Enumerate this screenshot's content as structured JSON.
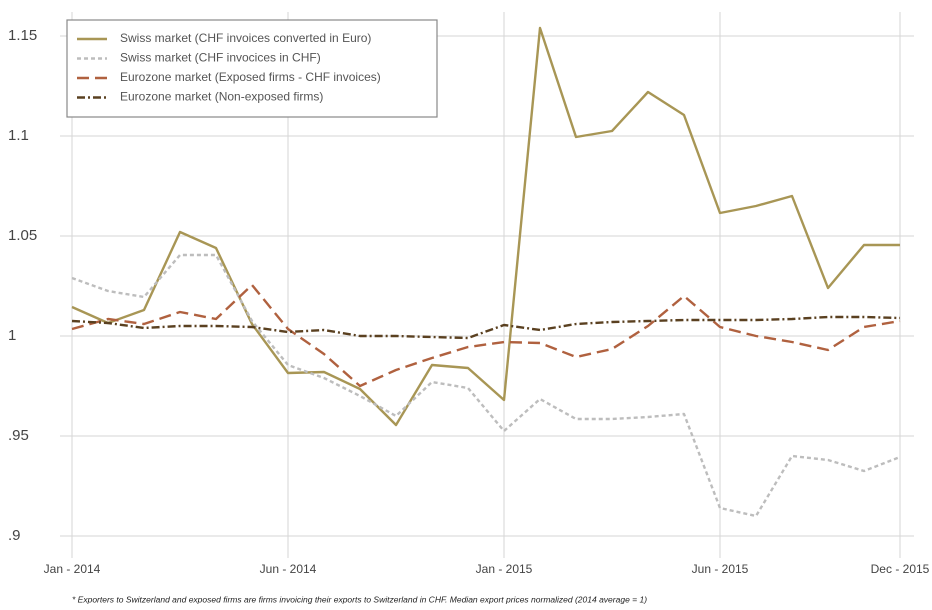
{
  "chart_data": {
    "type": "line",
    "categories": [
      "Jan - 2014",
      null,
      null,
      null,
      null,
      null,
      "Jun - 2014",
      null,
      null,
      null,
      null,
      null,
      "Jan - 2015",
      null,
      null,
      null,
      null,
      null,
      "Jun - 2015",
      null,
      null,
      null,
      null,
      "Dec - 2015"
    ],
    "series": [
      {
        "name": "Swiss market (CHF invoices converted in Euro)",
        "color": "#a89655",
        "dash": "solid",
        "values": [
          1.0145,
          1.0065,
          1.013,
          1.052,
          1.044,
          1.006,
          0.9815,
          0.982,
          0.9735,
          0.9555,
          0.9855,
          0.984,
          0.968,
          1.154,
          1.0995,
          1.1025,
          1.122,
          1.1105,
          1.0615,
          1.065,
          1.07,
          1.024,
          1.0455,
          1.0455
        ]
      },
      {
        "name": "Swiss market (CHF invocices in CHF)",
        "color": "#bdbdbd",
        "dash": "dotted",
        "values": [
          1.029,
          1.0225,
          1.0195,
          1.0405,
          1.0405,
          1.0075,
          0.9855,
          0.979,
          0.97,
          0.96,
          0.977,
          0.974,
          0.9525,
          0.9685,
          0.9585,
          0.9585,
          0.9595,
          0.961,
          0.914,
          0.91,
          0.94,
          0.938,
          0.9325,
          0.9395
        ]
      },
      {
        "name": "Eurozone market (Exposed firms - CHF invoices)",
        "color": "#b0613f",
        "dash": "dashed",
        "values": [
          1.0035,
          1.0085,
          1.006,
          1.012,
          1.0085,
          1.0255,
          1.0035,
          0.991,
          0.975,
          0.983,
          0.989,
          0.9945,
          0.997,
          0.9965,
          0.9895,
          0.9935,
          1.005,
          1.02,
          1.0045,
          1.0,
          0.997,
          0.993,
          1.0045,
          1.0075
        ]
      },
      {
        "name": "Eurozone market (Non-exposed firms)",
        "color": "#5a4020",
        "dash": "dashdot",
        "values": [
          1.0075,
          1.0065,
          1.004,
          1.005,
          1.005,
          1.0045,
          1.002,
          1.003,
          1.0,
          1.0,
          0.9995,
          0.999,
          1.0055,
          1.003,
          1.006,
          1.007,
          1.0075,
          1.008,
          1.008,
          1.008,
          1.0085,
          1.0095,
          1.0095,
          1.009
        ]
      }
    ],
    "ylim": [
      0.894,
      1.162
    ],
    "yticks": [
      {
        "value": 0.9,
        "label": ".9"
      },
      {
        "value": 0.95,
        "label": ".95"
      },
      1,
      1.05,
      1.1,
      1.15
    ],
    "grid": true,
    "legend": "top-left",
    "note": "* Exporters to Switzerland and exposed firms are firms invoicing their exports to Switzerland in CHF. Median export prices normalized (2014 average = 1)"
  }
}
